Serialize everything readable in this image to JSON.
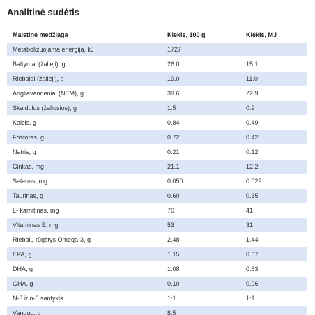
{
  "title": "Analitinė sudėtis",
  "headers": [
    "Maistinė medžiaga",
    "Kiekis, 100 g",
    "Kiekis, MJ"
  ],
  "rows": [
    [
      "Metabolizuojama energija, kJ",
      "1727",
      ""
    ],
    [
      "Baltymai (žalieji), g",
      "26.0",
      "15.1"
    ],
    [
      "Riebalai (žalieji), g",
      "19.0",
      "11.0"
    ],
    [
      "Angliavandeniai (NEM), g",
      "39.6",
      "22.9"
    ],
    [
      "Skaidulos (žaliosios),  g",
      "1.5",
      "0.9"
    ],
    [
      "Kalcis, g",
      "0.84",
      "0.49"
    ],
    [
      "Fosforas, g",
      "0.72",
      "0.42"
    ],
    [
      "Natris, g",
      "0.21",
      "0.12"
    ],
    [
      "Cinkas, mg",
      "21.1",
      "12.2"
    ],
    [
      "Selenas, mg",
      "0.050",
      "0.029"
    ],
    [
      "Taurinas, g",
      "0.60",
      "0.35"
    ],
    [
      "L- karnitinas, mg",
      "70",
      "41"
    ],
    [
      "Vitaminas E, mg",
      "53",
      "31"
    ],
    [
      "Riebalų rūgštys Omega-3, g",
      "2.48",
      "1.44"
    ],
    [
      "EPA, g",
      "1.15",
      "0.67"
    ],
    [
      "DHA, g",
      "1.08",
      "0.63"
    ],
    [
      "GHA, g",
      "0.10",
      "0.06"
    ],
    [
      "N-3 ir n-6 santykis",
      "1:1",
      "1:1"
    ],
    [
      "Vanduo, g",
      "8.5",
      ""
    ]
  ]
}
